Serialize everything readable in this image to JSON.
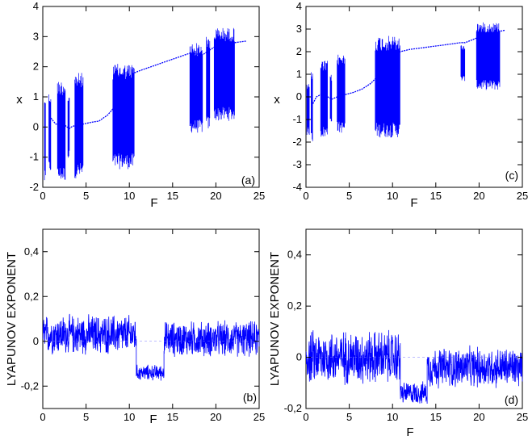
{
  "chart_data": [
    {
      "id": "a",
      "type": "scatter",
      "panel_label": "(a)",
      "xlabel": "F",
      "ylabel": "x",
      "xlim": [
        0,
        25
      ],
      "ylim": [
        -2,
        4
      ],
      "xticks": [
        "0",
        "5",
        "10",
        "15",
        "20",
        "25"
      ],
      "yticks": [
        "-2",
        "-1",
        "0",
        "1",
        "2",
        "3",
        "4"
      ],
      "xtick_values": [
        0,
        5,
        10,
        15,
        20,
        25
      ],
      "ytick_values": [
        -2,
        -1,
        0,
        1,
        2,
        3,
        4
      ],
      "series_color": "#0000ff",
      "chaotic_bands": [
        {
          "x0": 0.2,
          "x1": 0.35,
          "ymin": -1.9,
          "ymax": 1.1
        },
        {
          "x0": 0.7,
          "x1": 0.95,
          "ymin": -1.5,
          "ymax": 1.15
        },
        {
          "x0": 1.7,
          "x1": 2.6,
          "ymin": -1.8,
          "ymax": 1.55
        },
        {
          "x0": 2.9,
          "x1": 3.1,
          "ymin": -1.1,
          "ymax": 1.1
        },
        {
          "x0": 3.7,
          "x1": 4.7,
          "ymin": -1.7,
          "ymax": 1.8
        },
        {
          "x0": 8.1,
          "x1": 10.6,
          "ymin": -1.4,
          "ymax": 2.1
        },
        {
          "x0": 17.0,
          "x1": 18.5,
          "ymin": -0.2,
          "ymax": 2.8
        },
        {
          "x0": 18.9,
          "x1": 19.3,
          "ymin": -0.1,
          "ymax": 3.0
        },
        {
          "x0": 19.8,
          "x1": 22.2,
          "ymin": 0.2,
          "ymax": 3.3
        }
      ],
      "periodic_curve": {
        "x": [
          0.95,
          1.2,
          1.5,
          2.6,
          2.8,
          3.1,
          3.3,
          3.7,
          4.7,
          5.5,
          6.5,
          7.5,
          8.1,
          10.6,
          11.5,
          13,
          14.5,
          16,
          17,
          18.5,
          19,
          19.8,
          22.2,
          23.5
        ],
        "y": [
          0.3,
          0.2,
          0.1,
          0.05,
          0.0,
          -0.05,
          0.0,
          0.05,
          0.1,
          0.15,
          0.2,
          0.4,
          0.6,
          1.8,
          1.9,
          2.05,
          2.2,
          2.35,
          2.45,
          2.4,
          2.5,
          2.65,
          2.8,
          2.85
        ]
      }
    },
    {
      "id": "c",
      "type": "scatter",
      "panel_label": "(c)",
      "xlabel": "F",
      "ylabel": "x",
      "xlim": [
        0,
        25
      ],
      "ylim": [
        -4,
        4
      ],
      "xticks": [
        "0",
        "5",
        "10",
        "15",
        "20",
        "25"
      ],
      "yticks": [
        "-4",
        "-3",
        "-2",
        "-1",
        "0",
        "1",
        "2",
        "3",
        "4"
      ],
      "xtick_values": [
        0,
        5,
        10,
        15,
        20,
        25
      ],
      "ytick_values": [
        -4,
        -3,
        -2,
        -1,
        0,
        1,
        2,
        3,
        4
      ],
      "series_color": "#0000ff",
      "chaotic_bands": [
        {
          "x0": 0.1,
          "x1": 0.4,
          "ymin": -1.7,
          "ymax": 0.7
        },
        {
          "x0": 0.6,
          "x1": 0.8,
          "ymin": -2.0,
          "ymax": 1.1
        },
        {
          "x0": 1.7,
          "x1": 2.5,
          "ymin": -1.8,
          "ymax": 1.6
        },
        {
          "x0": 2.8,
          "x1": 3.0,
          "ymin": -1.1,
          "ymax": 1.0
        },
        {
          "x0": 3.6,
          "x1": 4.5,
          "ymin": -1.6,
          "ymax": 1.9
        },
        {
          "x0": 8.0,
          "x1": 10.9,
          "ymin": -1.8,
          "ymax": 2.7
        },
        {
          "x0": 17.9,
          "x1": 18.4,
          "ymin": 0.7,
          "ymax": 2.3
        },
        {
          "x0": 19.7,
          "x1": 22.4,
          "ymin": 0.3,
          "ymax": 3.3
        }
      ],
      "periodic_curve": {
        "x": [
          0.8,
          1.2,
          1.7,
          2.5,
          3.0,
          3.6,
          4.5,
          5.5,
          6.5,
          7.5,
          8.0,
          10.9,
          12,
          14,
          16,
          17.9,
          18.4,
          19.7,
          22.4,
          23
        ],
        "y": [
          -0.3,
          0.0,
          0.1,
          0.0,
          -0.1,
          0.0,
          0.1,
          0.2,
          0.35,
          0.6,
          0.8,
          2.0,
          2.1,
          2.2,
          2.3,
          2.4,
          2.4,
          2.6,
          2.9,
          2.95
        ]
      }
    },
    {
      "id": "b",
      "type": "line",
      "panel_label": "(b)",
      "xlabel": "F",
      "ylabel": "LYAPUNOV EXPONENT",
      "xlim": [
        0,
        25
      ],
      "ylim": [
        -0.3,
        0.5
      ],
      "xticks": [
        "0",
        "5",
        "10",
        "15",
        "20",
        "25"
      ],
      "yticks": [
        "-0,2",
        "0",
        "0,2",
        "0,4"
      ],
      "xtick_values": [
        0,
        5,
        10,
        15,
        20,
        25
      ],
      "ytick_values": [
        -0.2,
        0,
        0.2,
        0.4
      ],
      "series_color": "#0000ff",
      "segments": [
        {
          "x0": 0.0,
          "x1": 10.8,
          "center": 0.03,
          "amp": 0.1
        },
        {
          "x0": 10.8,
          "x1": 14.0,
          "center": -0.14,
          "amp": 0.04
        },
        {
          "x0": 14.0,
          "x1": 25.0,
          "center": 0.01,
          "amp": 0.09
        }
      ]
    },
    {
      "id": "d",
      "type": "line",
      "panel_label": "(d)",
      "xlabel": "F",
      "ylabel": "LYAPUNOV EXPONENT",
      "xlim": [
        0,
        25
      ],
      "ylim": [
        -0.2,
        0.5
      ],
      "xticks": [
        "0",
        "5",
        "10",
        "15",
        "20",
        "25"
      ],
      "yticks": [
        "-0,2",
        "0",
        "0,2",
        "0,4"
      ],
      "xtick_values": [
        0,
        5,
        10,
        15,
        20,
        25
      ],
      "ytick_values": [
        -0.2,
        0,
        0.2,
        0.4
      ],
      "series_color": "#0000ff",
      "segments": [
        {
          "x0": 0.0,
          "x1": 10.9,
          "center": 0.0,
          "amp": 0.12
        },
        {
          "x0": 10.9,
          "x1": 14.0,
          "center": -0.14,
          "amp": 0.05
        },
        {
          "x0": 14.0,
          "x1": 25.0,
          "center": -0.04,
          "amp": 0.09
        }
      ]
    }
  ]
}
